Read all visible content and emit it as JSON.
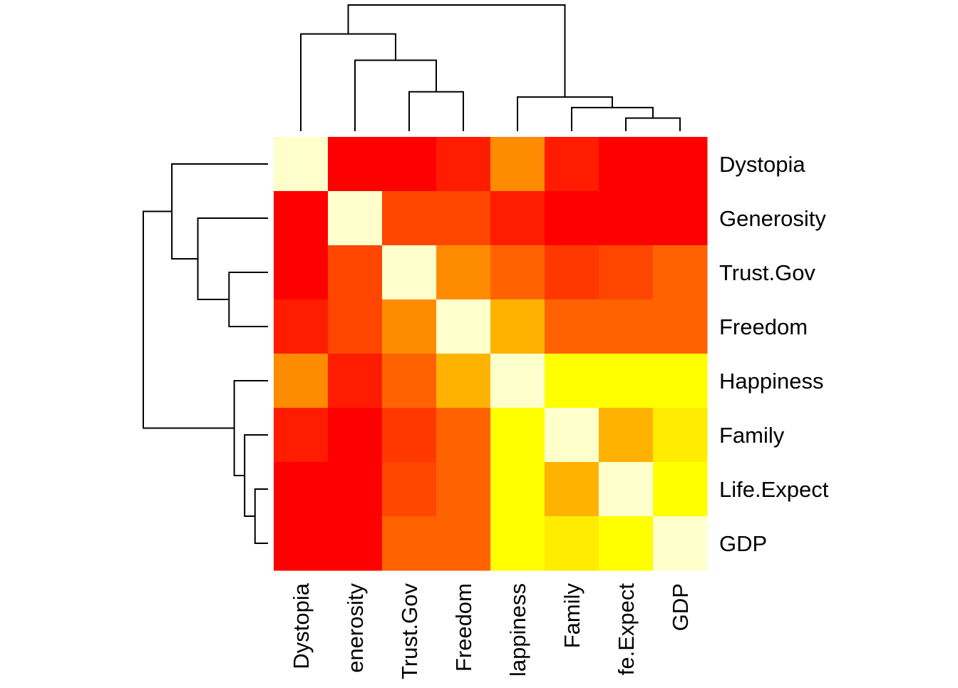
{
  "chart_data": {
    "type": "heatmap",
    "title": "",
    "xlabel": "",
    "ylabel": "",
    "rows": [
      "Dystopia",
      "Generosity",
      "Trust.Gov",
      "Freedom",
      "Happiness",
      "Family",
      "Life.Expect",
      "GDP"
    ],
    "cols": [
      "Dystopia",
      "Generosity",
      "Trust.Gov",
      "Freedom",
      "Happiness",
      "Family",
      "Life.Expect",
      "GDP"
    ],
    "col_tick_labels": [
      "Dystopia",
      "enerosity",
      "Trust.Gov",
      "Freedom",
      "lappiness",
      "Family",
      "fe.Expect",
      "GDP"
    ],
    "values": [
      [
        1.0,
        0.0,
        0.0,
        0.1,
        0.5,
        0.1,
        0.0,
        0.0
      ],
      [
        0.0,
        1.0,
        0.25,
        0.25,
        0.1,
        0.0,
        0.0,
        0.0
      ],
      [
        0.0,
        0.25,
        1.0,
        0.5,
        0.35,
        0.2,
        0.25,
        0.35
      ],
      [
        0.1,
        0.25,
        0.5,
        1.0,
        0.6,
        0.35,
        0.35,
        0.35
      ],
      [
        0.5,
        0.1,
        0.35,
        0.6,
        1.0,
        0.8,
        0.8,
        0.8
      ],
      [
        0.1,
        0.0,
        0.2,
        0.35,
        0.8,
        1.0,
        0.6,
        0.75
      ],
      [
        0.0,
        0.0,
        0.25,
        0.35,
        0.8,
        0.6,
        1.0,
        0.85
      ],
      [
        0.0,
        0.0,
        0.35,
        0.35,
        0.8,
        0.75,
        0.85,
        1.0
      ]
    ],
    "color_scale": {
      "low": "#ff0000",
      "mid": "#ff8c00",
      "high": "#ffff00",
      "max": "#ffffcc"
    },
    "dendrogram": {
      "order": [
        "Dystopia",
        "Generosity",
        "Trust.Gov",
        "Freedom",
        "Happiness",
        "Family",
        "Life.Expect",
        "GDP"
      ],
      "merges": [
        {
          "a": 6,
          "b": 7,
          "height": 0.25
        },
        {
          "a": 5,
          "b": "m0",
          "height": 0.45
        },
        {
          "a": 4,
          "b": "m1",
          "height": 0.65
        },
        {
          "a": 2,
          "b": 3,
          "height": 0.75
        },
        {
          "a": 1,
          "b": "m3",
          "height": 1.35
        },
        {
          "a": 0,
          "b": "m4",
          "height": 1.85
        },
        {
          "a": "m5",
          "b": "m2",
          "height": 2.4
        }
      ]
    }
  }
}
